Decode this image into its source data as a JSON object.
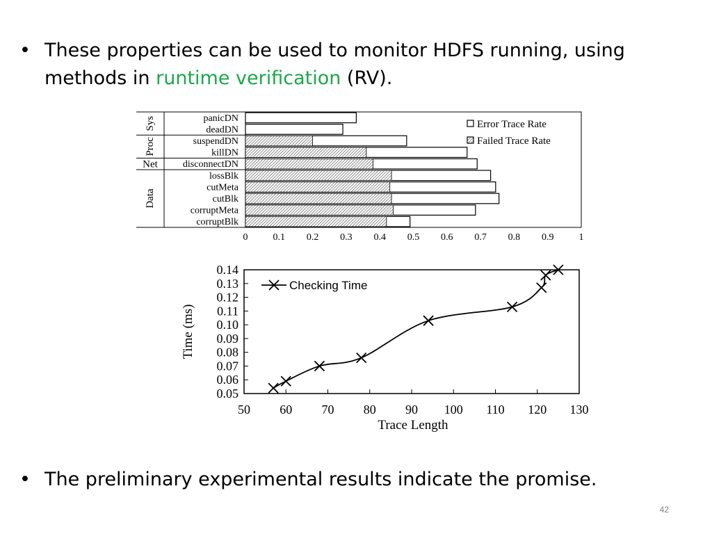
{
  "slide": {
    "bullet1": {
      "line1": "These properties can be used to monitor HDFS running, using",
      "line2_pre": "methods in ",
      "line2_highlight": "runtime verification",
      "line2_post": " (RV)."
    },
    "bullet2": "The preliminary experimental results indicate the promise.",
    "page_number": "42",
    "highlight_color": "#1aa84a"
  },
  "chart_data": [
    {
      "type": "bar",
      "orientation": "horizontal",
      "categories": [
        "panicDN",
        "deadDN",
        "suspendDN",
        "killDN",
        "disconnectDN",
        "lossBlk",
        "cutMeta",
        "cutBlk",
        "corruptMeta",
        "corruptBlk"
      ],
      "groups": [
        {
          "label": "Sys",
          "categories": [
            "panicDN",
            "deadDN"
          ]
        },
        {
          "label": "Proc",
          "categories": [
            "suspendDN",
            "killDN"
          ]
        },
        {
          "label": "Net",
          "categories": [
            "disconnectDN"
          ]
        },
        {
          "label": "Data",
          "categories": [
            "lossBlk",
            "cutMeta",
            "cutBlk",
            "corruptMeta",
            "corruptBlk"
          ]
        }
      ],
      "series": [
        {
          "name": "Error Trace Rate",
          "values": [
            0.33,
            0.29,
            0.48,
            0.66,
            0.69,
            0.73,
            0.745,
            0.755,
            0.685,
            0.49
          ]
        },
        {
          "name": "Failed Trace Rate",
          "values": [
            0,
            0,
            0.2,
            0.36,
            0.38,
            0.435,
            0.43,
            0.435,
            0.44,
            0.42
          ]
        }
      ],
      "xticks": [
        "0",
        "0.1",
        "0.2",
        "0.3",
        "0.4",
        "0.5",
        "0.6",
        "0.7",
        "0.8",
        "0.9",
        "1"
      ],
      "xlim": [
        0,
        1
      ],
      "legend": "top-right"
    },
    {
      "type": "line",
      "series": [
        {
          "name": "Checking Time",
          "x": [
            57,
            60,
            68,
            78,
            94,
            114,
            121,
            122,
            125
          ],
          "y": [
            0.054,
            0.059,
            0.07,
            0.076,
            0.103,
            0.113,
            0.127,
            0.136,
            0.14
          ]
        }
      ],
      "xlabel": "Trace Length",
      "ylabel": "Time (ms)",
      "xlim": [
        50,
        130
      ],
      "ylim": [
        0.05,
        0.14
      ],
      "xticks": [
        "50",
        "60",
        "70",
        "80",
        "90",
        "100",
        "110",
        "120",
        "130"
      ],
      "yticks": [
        "0.05",
        "0.06",
        "0.07",
        "0.08",
        "0.09",
        "0.10",
        "0.11",
        "0.12",
        "0.13",
        "0.14"
      ],
      "legend": "top-left"
    }
  ]
}
